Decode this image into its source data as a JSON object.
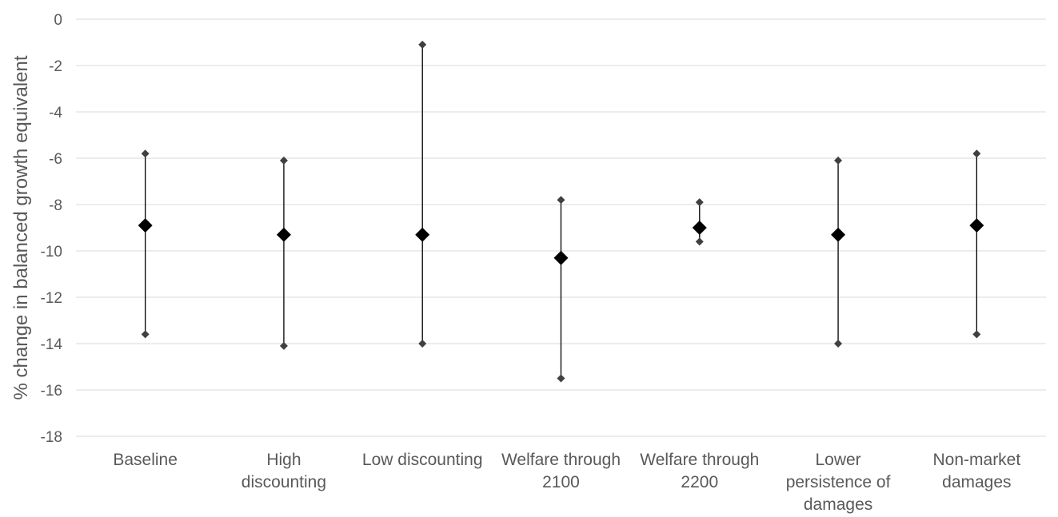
{
  "chart_data": {
    "type": "scatter",
    "title": "",
    "xlabel": "",
    "ylabel": "% change in balanced growth equivalent",
    "ylim": [
      -18,
      0
    ],
    "ytick_step": 2,
    "yticks": [
      "0",
      "-2",
      "-4",
      "-6",
      "-8",
      "-10",
      "-12",
      "-14",
      "-16",
      "-18"
    ],
    "grid": true,
    "legend": "none",
    "categories": [
      [
        "Baseline"
      ],
      [
        "High",
        "discounting"
      ],
      [
        "Low discounting"
      ],
      [
        "Welfare through",
        "2100"
      ],
      [
        "Welfare through",
        "2200"
      ],
      [
        "Lower",
        "persistence of",
        "damages"
      ],
      [
        "Non-market",
        "damages"
      ]
    ],
    "central": [
      -8.9,
      -9.3,
      -9.3,
      -10.3,
      -9.0,
      -9.3,
      -8.9
    ],
    "upper": [
      -5.8,
      -6.1,
      -1.1,
      -7.8,
      -7.9,
      -6.1,
      -5.8
    ],
    "lower": [
      -13.6,
      -14.1,
      -14.0,
      -15.5,
      -9.6,
      -14.0,
      -13.6
    ],
    "colors": {
      "marker": "#000000",
      "bound_marker": "#404040",
      "grid": "#d9d9d9",
      "text": "#595959"
    }
  }
}
